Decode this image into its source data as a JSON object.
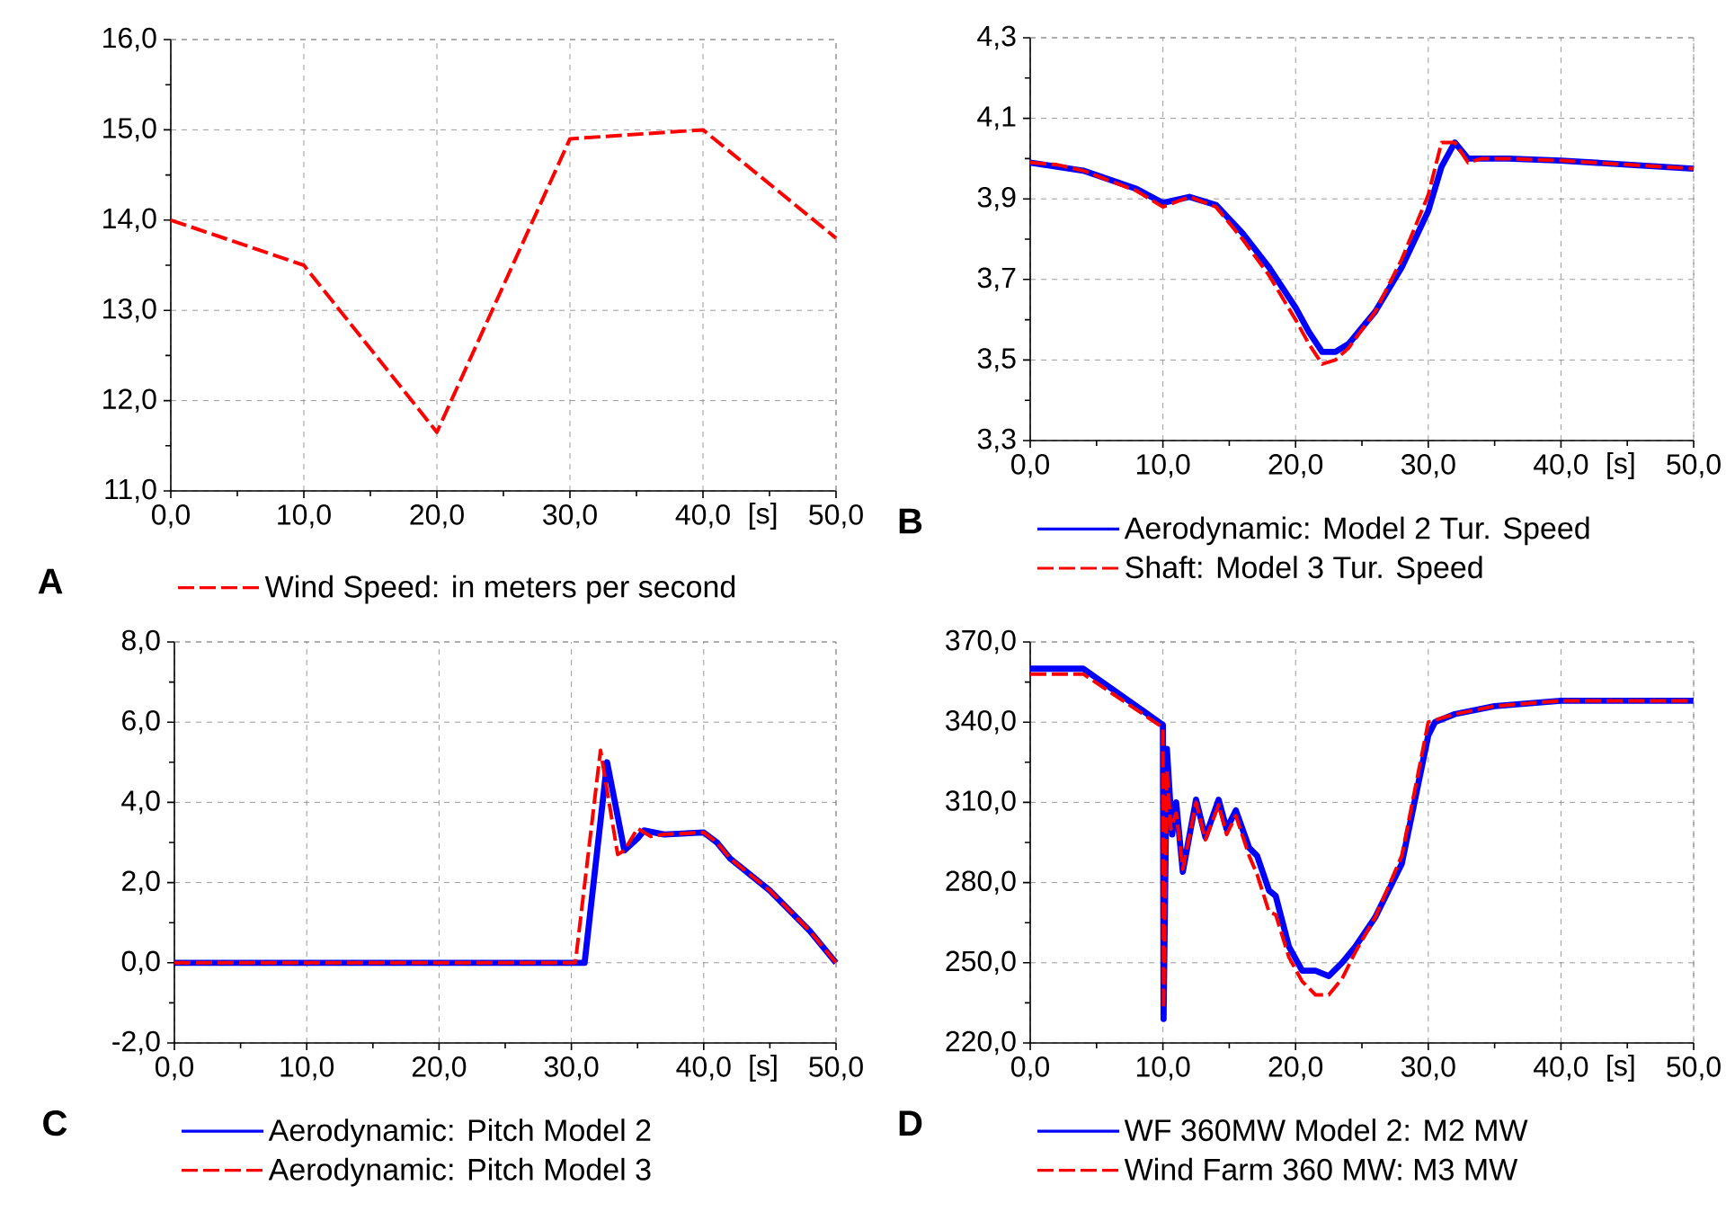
{
  "chart_data": [
    {
      "type": "line",
      "xlabel": "[s]",
      "annotations": [
        "A"
      ],
      "legend": "bottom",
      "grid": true,
      "line_style": "dashed",
      "xlim": [
        0,
        50
      ],
      "xticks": [
        {
          "value": 0,
          "label": "0,0"
        },
        {
          "value": 10,
          "label": "10,0"
        },
        {
          "value": 20,
          "label": "20,0"
        },
        {
          "value": 30,
          "label": "30,0"
        },
        {
          "value": 40,
          "label": "40,0"
        },
        {
          "value": 50,
          "label": "50,0"
        }
      ],
      "ylim": [
        11,
        16
      ],
      "yticks": [
        {
          "value": 11,
          "label": "11,0"
        },
        {
          "value": 12,
          "label": "12,0"
        },
        {
          "value": 13,
          "label": "13,0"
        },
        {
          "value": 14,
          "label": "14,0"
        },
        {
          "value": 15,
          "label": "15,0"
        },
        {
          "value": 16,
          "label": "16,0"
        }
      ],
      "series": [
        {
          "name": "Wind Speed: in meters per second",
          "color": "#ff0000",
          "x": [
            0,
            10,
            20,
            30,
            40,
            50
          ],
          "values": [
            14.0,
            13.5,
            11.65,
            14.9,
            15.0,
            13.8
          ]
        }
      ]
    },
    {
      "type": "line",
      "xlabel": "[s]",
      "annotations": [
        "B"
      ],
      "legend": "bottom",
      "grid": true,
      "xlim": [
        0,
        50
      ],
      "xticks": [
        {
          "value": 0,
          "label": "0,0"
        },
        {
          "value": 10,
          "label": "10,0"
        },
        {
          "value": 20,
          "label": "20,0"
        },
        {
          "value": 30,
          "label": "30,0"
        },
        {
          "value": 40,
          "label": "40,0"
        },
        {
          "value": 50,
          "label": "50,0"
        }
      ],
      "ylim": [
        3.3,
        4.3
      ],
      "yticks": [
        {
          "value": 3.3,
          "label": "3,3"
        },
        {
          "value": 3.5,
          "label": "3,5"
        },
        {
          "value": 3.7,
          "label": "3,7"
        },
        {
          "value": 3.9,
          "label": "3,9"
        },
        {
          "value": 4.1,
          "label": "4,1"
        },
        {
          "value": 4.3,
          "label": "4,3"
        }
      ],
      "series": [
        {
          "name": "Aerodynamic: Model 2 Tur. Speed",
          "color": "#0000ff",
          "line_style": "solid",
          "x": [
            0,
            4,
            8,
            10,
            12,
            14,
            16,
            18,
            20,
            21,
            22,
            23,
            24,
            26,
            28,
            30,
            31,
            32,
            33,
            34,
            36,
            40,
            45,
            50
          ],
          "values": [
            3.99,
            3.97,
            3.925,
            3.89,
            3.905,
            3.885,
            3.815,
            3.73,
            3.63,
            3.57,
            3.52,
            3.52,
            3.54,
            3.62,
            3.73,
            3.87,
            3.98,
            4.04,
            4.0,
            4.0,
            4.0,
            3.995,
            3.985,
            3.975
          ]
        },
        {
          "name": "Shaft: Model 3 Tur. Speed",
          "color": "#ff0000",
          "line_style": "dashed",
          "x": [
            0,
            2,
            4,
            6,
            8,
            10,
            12,
            14,
            16,
            18,
            20,
            21,
            22,
            23,
            24,
            26,
            28,
            30,
            31,
            32,
            33,
            34,
            36,
            40,
            45,
            50
          ],
          "values": [
            3.99,
            3.985,
            3.97,
            3.945,
            3.92,
            3.88,
            3.905,
            3.88,
            3.8,
            3.71,
            3.6,
            3.54,
            3.49,
            3.5,
            3.53,
            3.62,
            3.75,
            3.91,
            4.04,
            4.04,
            3.99,
            4.0,
            4.0,
            3.995,
            3.985,
            3.975
          ]
        }
      ]
    },
    {
      "type": "line",
      "xlabel": "[s]",
      "annotations": [
        "C"
      ],
      "legend": "bottom",
      "grid": true,
      "xlim": [
        0,
        50
      ],
      "xticks": [
        {
          "value": 0,
          "label": "0,0"
        },
        {
          "value": 10,
          "label": "10,0"
        },
        {
          "value": 20,
          "label": "20,0"
        },
        {
          "value": 30,
          "label": "30,0"
        },
        {
          "value": 40,
          "label": "40,0"
        },
        {
          "value": 50,
          "label": "50,0"
        }
      ],
      "ylim": [
        -2,
        8
      ],
      "yticks": [
        {
          "value": -2,
          "label": "-2,0"
        },
        {
          "value": 0,
          "label": "0,0"
        },
        {
          "value": 2,
          "label": "2,0"
        },
        {
          "value": 4,
          "label": "4,0"
        },
        {
          "value": 6,
          "label": "6,0"
        },
        {
          "value": 8,
          "label": "8,0"
        }
      ],
      "series": [
        {
          "name": "Aerodynamic: Pitch  Model 2",
          "color": "#0000ff",
          "line_style": "solid",
          "x": [
            0,
            31,
            32.7,
            34,
            35,
            35.5,
            37,
            40,
            41,
            42,
            45,
            48,
            50
          ],
          "values": [
            0,
            0,
            5.0,
            2.8,
            3.1,
            3.3,
            3.2,
            3.25,
            3.0,
            2.6,
            1.8,
            0.8,
            0
          ]
        },
        {
          "name": "Aerodynamic: Pitch  Model 3",
          "color": "#ff0000",
          "line_style": "dashed",
          "x": [
            0,
            30.3,
            32.2,
            33.5,
            34,
            35,
            36,
            37,
            40,
            41,
            42,
            45,
            48,
            50
          ],
          "values": [
            0,
            0,
            5.3,
            2.7,
            2.8,
            3.35,
            3.15,
            3.2,
            3.25,
            3.0,
            2.6,
            1.8,
            0.8,
            0
          ]
        }
      ]
    },
    {
      "type": "line",
      "xlabel": "[s]",
      "annotations": [
        "D"
      ],
      "legend": "bottom",
      "grid": true,
      "xlim": [
        0,
        50
      ],
      "xticks": [
        {
          "value": 0,
          "label": "0,0"
        },
        {
          "value": 10,
          "label": "10,0"
        },
        {
          "value": 20,
          "label": "20,0"
        },
        {
          "value": 30,
          "label": "30,0"
        },
        {
          "value": 40,
          "label": "40,0"
        },
        {
          "value": 50,
          "label": "50,0"
        }
      ],
      "ylim": [
        220,
        370
      ],
      "yticks": [
        {
          "value": 220,
          "label": "220,0"
        },
        {
          "value": 250,
          "label": "250,0"
        },
        {
          "value": 280,
          "label": "280,0"
        },
        {
          "value": 310,
          "label": "310,0"
        },
        {
          "value": 340,
          "label": "340,0"
        },
        {
          "value": 370,
          "label": "370,0"
        }
      ],
      "series": [
        {
          "name": "WF 360MW Model 2: M2 MW",
          "color": "#0000ff",
          "line_style": "solid",
          "x": [
            0,
            4,
            10,
            10.05,
            10.3,
            10.7,
            11,
            11.5,
            12.5,
            13.2,
            14.2,
            14.8,
            15.5,
            16.5,
            17.1,
            18,
            18.5,
            19.5,
            20.5,
            21.5,
            22.5,
            23.5,
            24.5,
            26,
            28,
            30,
            30.5,
            32,
            35,
            40,
            50
          ],
          "values": [
            360,
            360,
            339,
            229,
            330,
            298,
            310,
            284,
            311,
            297,
            311,
            300,
            307,
            293,
            290,
            277,
            275,
            256,
            247,
            247,
            245,
            250,
            256,
            267,
            287,
            335,
            340,
            343,
            346,
            348,
            348
          ]
        },
        {
          "name": "Wind Farm 360 MW: M3 MW",
          "color": "#ff0000",
          "line_style": "dashed",
          "x": [
            0,
            4,
            10,
            10.05,
            10.3,
            10.6,
            11,
            11.5,
            12.5,
            13.2,
            14.2,
            14.8,
            15.5,
            16.5,
            17.1,
            18,
            18.5,
            19.5,
            20.5,
            21.5,
            22.5,
            23.5,
            24.5,
            26,
            28,
            30,
            32,
            35,
            40,
            50
          ],
          "values": [
            358,
            358,
            338,
            233,
            322,
            300,
            306,
            285,
            310,
            296,
            309,
            298,
            305,
            290,
            283,
            269,
            268,
            252,
            243,
            238,
            238,
            244,
            254,
            267,
            290,
            340,
            343,
            346,
            348,
            348
          ]
        }
      ]
    }
  ]
}
